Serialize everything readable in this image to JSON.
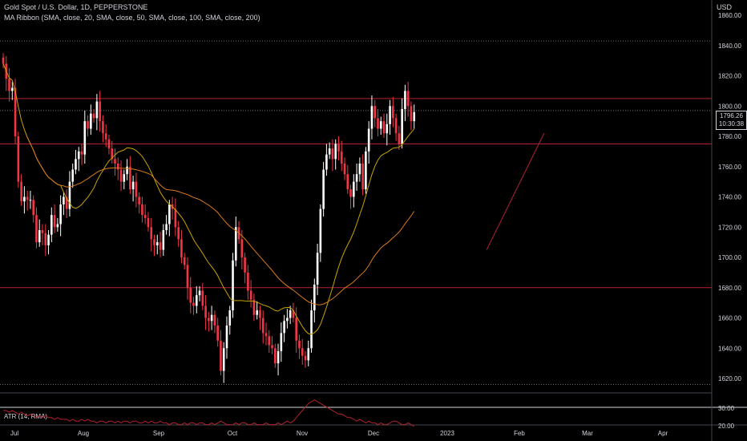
{
  "header": {
    "title": "Gold Spot / U.S. Dollar, 1D, PEPPERSTONE",
    "indicator": "MA Ribbon (SMA, close, 20, SMA, close, 50, SMA, close, 100, SMA, close, 200)",
    "currency": "USD"
  },
  "price_tag": {
    "price": "1796.26",
    "countdown": "10:30:38"
  },
  "atr": {
    "label": "ATR (14, RMA)"
  },
  "colors": {
    "up": "#ffffff",
    "down": "#f23645",
    "ma20": "#c8a200",
    "ma50": "#d97a1b",
    "level": "#b2222e"
  },
  "chart_data": {
    "type": "candlestick",
    "y_ticks": [
      1620,
      1640,
      1660,
      1680,
      1700,
      1720,
      1740,
      1760,
      1780,
      1800,
      1820,
      1840,
      1860
    ],
    "y_tick_labels": [
      "1620.00",
      "1640.00",
      "1660.00",
      "1680.00",
      "1700.00",
      "1720.00",
      "1740.00",
      "1760.00",
      "1780.00",
      "1800.00",
      "1820.00",
      "1840.00",
      "1860.00"
    ],
    "ylim": [
      1612,
      1870
    ],
    "x_labels": [
      "Jul",
      "Aug",
      "Sep",
      "Oct",
      "Nov",
      "Dec",
      "2023",
      "Feb",
      "Mar",
      "Apr"
    ],
    "horizontal_levels": [
      1805,
      1775,
      1680
    ],
    "dotted_levels": [
      1843,
      1797,
      1616
    ],
    "trendline": {
      "from": [
        160,
        1705
      ],
      "to": [
        179,
        1782
      ]
    },
    "closes": [
      1828,
      1818,
      1810,
      1812,
      1780,
      1750,
      1737,
      1740,
      1738,
      1738,
      1728,
      1710,
      1718,
      1716,
      1708,
      1715,
      1728,
      1720,
      1722,
      1735,
      1740,
      1732,
      1750,
      1758,
      1765,
      1770,
      1768,
      1790,
      1785,
      1795,
      1792,
      1803,
      1790,
      1782,
      1778,
      1772,
      1765,
      1762,
      1758,
      1750,
      1755,
      1760,
      1745,
      1750,
      1740,
      1735,
      1728,
      1726,
      1720,
      1712,
      1708,
      1710,
      1705,
      1718,
      1722,
      1735,
      1732,
      1720,
      1712,
      1700,
      1695,
      1680,
      1670,
      1668,
      1675,
      1678,
      1668,
      1660,
      1658,
      1662,
      1655,
      1645,
      1625,
      1640,
      1655,
      1665,
      1698,
      1720,
      1712,
      1700,
      1690,
      1678,
      1672,
      1662,
      1665,
      1660,
      1650,
      1648,
      1642,
      1640,
      1630,
      1638,
      1650,
      1658,
      1660,
      1665,
      1660,
      1645,
      1640,
      1635,
      1632,
      1640,
      1665,
      1682,
      1703,
      1732,
      1758,
      1768,
      1772,
      1765,
      1775,
      1770,
      1762,
      1755,
      1745,
      1740,
      1750,
      1755,
      1762,
      1745,
      1770,
      1785,
      1800,
      1792,
      1785,
      1790,
      1782,
      1788,
      1800,
      1792,
      1782,
      1775,
      1798,
      1810,
      1800,
      1790,
      1796
    ],
    "atr_values": [
      30,
      30,
      29,
      30,
      29,
      28,
      29,
      28,
      27,
      28,
      27,
      26,
      27,
      26,
      27,
      26,
      26,
      25,
      26,
      25,
      25,
      25,
      24,
      25,
      24,
      24,
      25,
      24,
      25,
      24,
      24,
      23,
      24,
      24,
      23,
      24,
      24,
      23,
      24,
      23,
      24,
      24,
      23,
      24,
      24,
      23,
      23,
      24,
      23,
      24,
      23,
      23,
      24,
      23,
      23,
      22,
      23,
      23,
      22,
      22,
      23,
      22,
      23,
      23,
      22,
      23,
      23,
      22,
      22,
      23,
      22,
      23,
      24,
      23,
      22,
      22,
      22,
      23,
      22,
      23,
      23,
      22,
      22,
      23,
      22,
      22,
      22,
      23,
      22,
      22,
      22,
      23,
      22,
      23,
      24,
      23,
      24,
      26,
      28,
      30,
      32,
      34,
      35,
      36,
      35,
      34,
      33,
      32,
      31,
      30,
      29,
      28,
      28,
      27,
      26,
      26,
      25,
      24,
      25,
      24,
      23,
      24,
      23,
      23,
      22,
      23,
      22,
      22,
      23,
      24,
      24,
      23,
      22,
      22,
      23,
      22,
      21
    ]
  }
}
